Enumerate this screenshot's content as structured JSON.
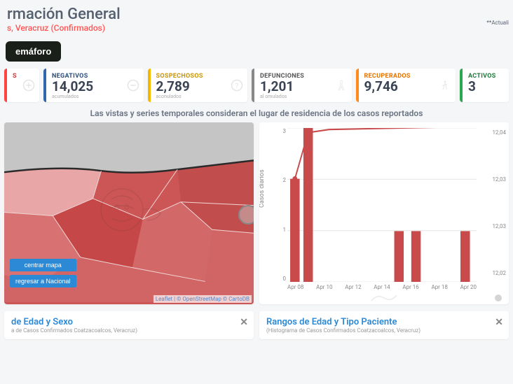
{
  "header": {
    "title": "rmación General",
    "subtitle": "s, Veracruz (Confirmados)",
    "update_note": "**Actuali",
    "semaforo_label": "emáforo"
  },
  "stats": {
    "semilabel_s": "S",
    "negativos": {
      "label": "NEGATIVOS",
      "value": "14,025",
      "sub": "acumulados"
    },
    "sospechosos": {
      "label": "SOSPECHOSOS",
      "value": "2,789",
      "sub": "aconulados"
    },
    "defunciones": {
      "label": "DEFUNCIONES",
      "value": "1,201",
      "sub": "al omulados"
    },
    "recuperados": {
      "label": "RECUPERADOS",
      "value": "9,746"
    },
    "activos": {
      "label": "ACTIVOS",
      "value": "3"
    }
  },
  "info_text": "Las vistas y series temporales consideran el lugar de residencia de los casos reportados",
  "map": {
    "btn_center": "centrar mapa",
    "btn_back": "regresar a Nacional",
    "attribution": "Leaflet | © OpenStreetMap © CartoDB",
    "region_colors": [
      "#c5c5c5",
      "#e8a6a6",
      "#d87777",
      "#cc5050",
      "#b84444"
    ],
    "border_color": "#2a2a2a"
  },
  "chart": {
    "y_label_left": "Casos diarios",
    "y_ticks_left": [
      "3",
      "2",
      "1",
      "0"
    ],
    "y_ticks_right": [
      "12,04",
      "12,03",
      "12,03",
      "12,02"
    ],
    "x_ticks": [
      "Apr 08",
      "Apr 10",
      "Apr 12",
      "Apr 14",
      "Apr 16",
      "Apr 18",
      "Apr 20"
    ],
    "bars": [
      {
        "x": 0.04,
        "h": 0.67
      },
      {
        "x": 0.11,
        "h": 1.0
      },
      {
        "x": 0.59,
        "h": 0.33
      },
      {
        "x": 0.68,
        "h": 0.33
      },
      {
        "x": 0.94,
        "h": 0.33
      }
    ],
    "line_points": [
      {
        "x": 0.04,
        "y": 0.67
      },
      {
        "x": 0.11,
        "y": 0.97
      },
      {
        "x": 0.22,
        "y": 0.99
      },
      {
        "x": 0.99,
        "y": 1.01
      }
    ],
    "bar_color": "#c94a4a",
    "line_color": "#c94a4a",
    "grid_color": "#e8e8e8",
    "dot_color": "#c94a4a"
  },
  "histograms": {
    "left": {
      "title": "de Edad y Sexo",
      "sub": "a de Casos Confirmados Coatzacoalcos, Veracruz)"
    },
    "right": {
      "title": "Rangos de Edad y Tipo Paciente",
      "sub": "(Histograma de Casos Confirmados Coatzacoalcos, Veracruz)"
    }
  }
}
